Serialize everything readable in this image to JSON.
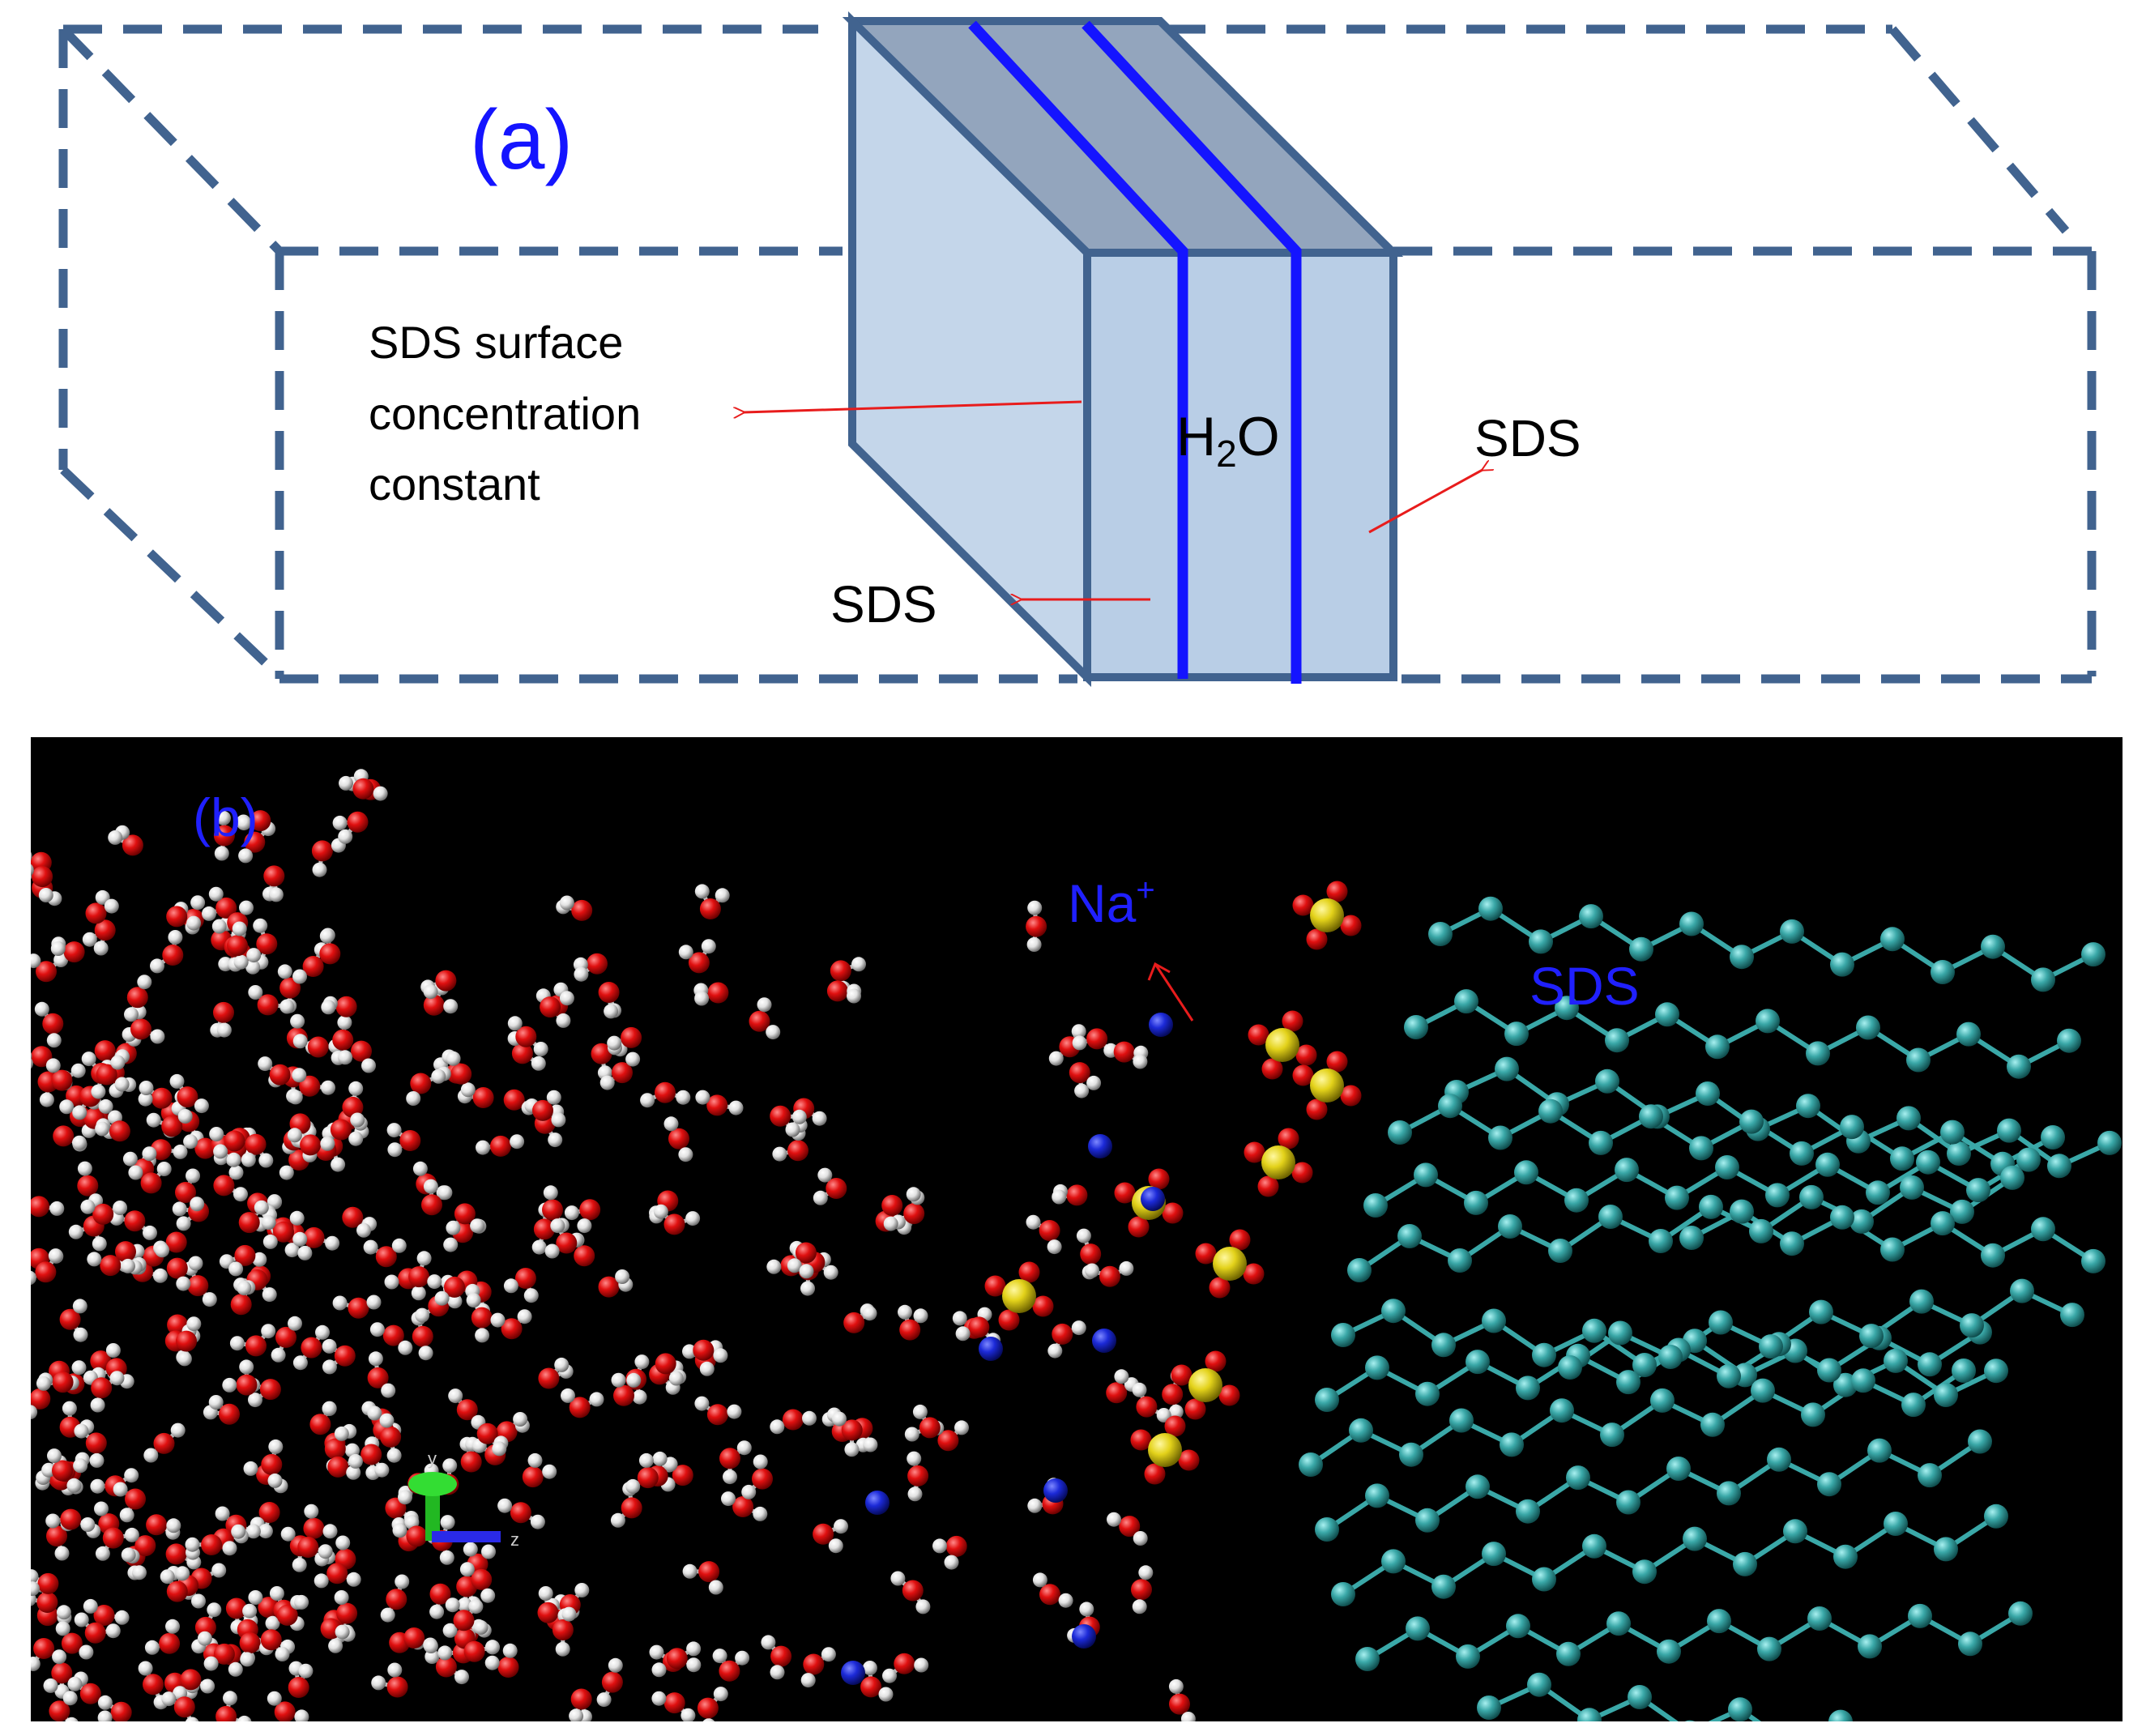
{
  "panel_a": {
    "label": "(a)",
    "annotation_lines": [
      "SDS surface",
      "concentration",
      "constant"
    ],
    "sds_left": "SDS",
    "sds_right": "SDS",
    "water_main": "H",
    "water_sub": "2",
    "water_tail": "O",
    "colors": {
      "box_stroke": "#41638f",
      "slab_fill": "#bdd1e8",
      "slab_top": "#93a5bd",
      "interface_line": "#1414ff",
      "arrow": "#e81c1c"
    }
  },
  "panel_b": {
    "label": "(b)",
    "na_main": "Na",
    "na_sup": "+",
    "sds_label": "SDS",
    "axis_z": "z",
    "axis_y": "y",
    "colors": {
      "background": "#000000",
      "oxygen": "#e01010",
      "hydrogen": "#ececec",
      "sulfur": "#e8dc20",
      "carbon": "#3aa8a8",
      "sodium": "#1c2ad8",
      "label": "#2020ff"
    }
  }
}
